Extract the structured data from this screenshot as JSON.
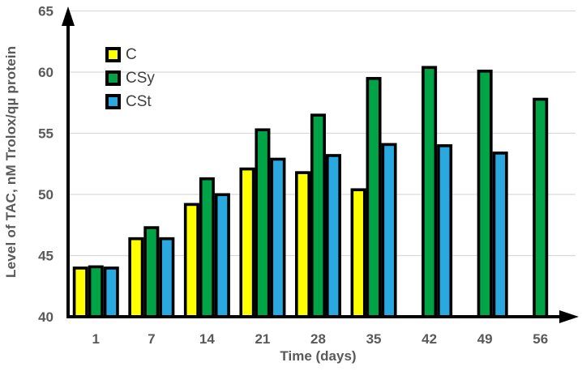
{
  "chart_data": {
    "type": "bar",
    "title": "",
    "xlabel": "Time (days)",
    "ylabel": "Level of TAC, nM Trolox/qµ protein",
    "categories": [
      "1",
      "7",
      "14",
      "21",
      "28",
      "35",
      "42",
      "49",
      "56"
    ],
    "series": [
      {
        "name": "C",
        "color": "#ffff00",
        "values": [
          44.1,
          46.5,
          49.3,
          52.2,
          51.9,
          50.5,
          null,
          null,
          null
        ]
      },
      {
        "name": "CSy",
        "color": "#00a346",
        "values": [
          44.2,
          47.4,
          51.4,
          55.4,
          56.6,
          59.6,
          60.5,
          60.2,
          57.9
        ]
      },
      {
        "name": "CSt",
        "color": "#29a9e0",
        "values": [
          44.1,
          46.5,
          50.1,
          53.0,
          53.3,
          54.2,
          54.1,
          53.5,
          null
        ]
      }
    ],
    "ylim": [
      40,
      65
    ],
    "yticks": [
      40,
      45,
      50,
      55,
      60,
      65
    ],
    "grid": true,
    "legend_position": "top-left-inside",
    "colors": {
      "axis": "#000000",
      "gridline": "#d9d9d9",
      "tick_label": "#595959",
      "legend_text": "#3f3f3f",
      "bar_border": "#000000",
      "background": "#ffffff"
    }
  }
}
